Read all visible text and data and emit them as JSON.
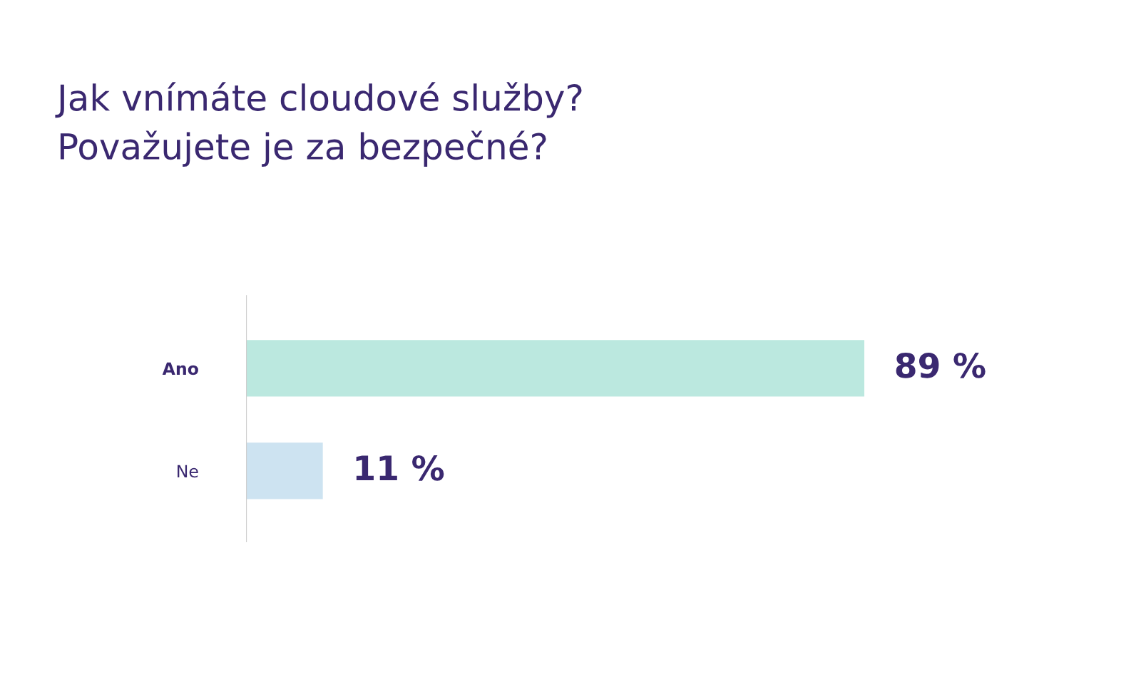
{
  "chart_data": {
    "type": "bar",
    "orientation": "horizontal",
    "title": "Jak vnímáte cloudové služby?\nPovažujete je za bezpečné?",
    "categories": [
      "Ano",
      "Ne"
    ],
    "values": [
      89,
      11
    ],
    "colors": [
      "#bbe8df",
      "#cde3f1"
    ],
    "value_labels": [
      "89 %",
      "11 %"
    ],
    "tick_labels": "y",
    "grid": false,
    "legend": false
  }
}
